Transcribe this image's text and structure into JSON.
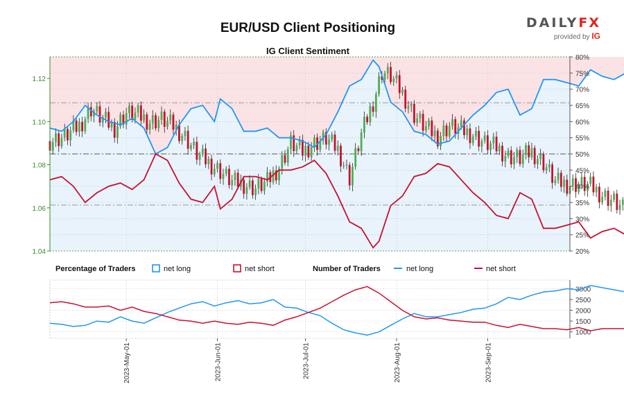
{
  "title": "EUR/USD Client Positioning",
  "subtitle": "IG Client Sentiment",
  "brand": {
    "name_main": "DAILY",
    "name_accent": "FX",
    "provided_by": "provided by",
    "provider": "IG"
  },
  "legend": {
    "percentage_label": "Percentage of Traders",
    "number_label": "Number of Traders",
    "net_long": "net long",
    "net_short": "net short"
  },
  "colors": {
    "long": "#2196f3",
    "short": "#c8102e",
    "candle_up": "#4caf50",
    "candle_down": "#c8102e",
    "bg_long": "#e8f3fb",
    "bg_short": "#fbe3e5",
    "left_axis": "#3a8a2a"
  },
  "chart_data": [
    {
      "type": "candlestick",
      "title": "EUR/USD Client Positioning",
      "subtitle": "IG Client Sentiment",
      "x_range": [
        "2023-04-05",
        "2023-09-29"
      ],
      "y_left_range": [
        1.04,
        1.13
      ],
      "y_left_ticks": [
        "1.04",
        "1.06",
        "1.08",
        "1.10",
        "1.12"
      ],
      "y_right_range": [
        20,
        80
      ],
      "y_right_ticks": [
        "20%",
        "25%",
        "30%",
        "35%",
        "40%",
        "45%",
        "50%",
        "55%",
        "60%",
        "65%",
        "70%",
        "75%",
        "80%"
      ],
      "price_close": [
        [
          0,
          1.091
        ],
        [
          5,
          1.093
        ],
        [
          10,
          1.098
        ],
        [
          14,
          1.106
        ],
        [
          18,
          1.101
        ],
        [
          22,
          1.097
        ],
        [
          26,
          1.104
        ],
        [
          30,
          1.103
        ],
        [
          34,
          1.1
        ],
        [
          38,
          1.101
        ],
        [
          42,
          1.098
        ],
        [
          46,
          1.093
        ],
        [
          50,
          1.085
        ],
        [
          54,
          1.081
        ],
        [
          58,
          1.077
        ],
        [
          62,
          1.072
        ],
        [
          66,
          1.071
        ],
        [
          70,
          1.069
        ],
        [
          74,
          1.072
        ],
        [
          78,
          1.079
        ],
        [
          82,
          1.09
        ],
        [
          86,
          1.086
        ],
        [
          90,
          1.09
        ],
        [
          94,
          1.092
        ],
        [
          98,
          1.087
        ],
        [
          102,
          1.074
        ],
        [
          106,
          1.094
        ],
        [
          110,
          1.109
        ],
        [
          113,
          1.123
        ],
        [
          116,
          1.121
        ],
        [
          120,
          1.113
        ],
        [
          124,
          1.103
        ],
        [
          128,
          1.097
        ],
        [
          132,
          1.093
        ],
        [
          136,
          1.098
        ],
        [
          140,
          1.096
        ],
        [
          144,
          1.094
        ],
        [
          148,
          1.09
        ],
        [
          152,
          1.088
        ],
        [
          156,
          1.084
        ],
        [
          160,
          1.083
        ],
        [
          164,
          1.086
        ],
        [
          168,
          1.081
        ],
        [
          172,
          1.072
        ],
        [
          176,
          1.071
        ],
        [
          180,
          1.071
        ],
        [
          184,
          1.07
        ],
        [
          188,
          1.066
        ],
        [
          192,
          1.063
        ],
        [
          196,
          1.058
        ],
        [
          200,
          1.055
        ],
        [
          203,
          1.057
        ]
      ],
      "net_long_pct": [
        [
          0,
          58
        ],
        [
          4,
          57
        ],
        [
          8,
          60
        ],
        [
          12,
          65
        ],
        [
          16,
          62
        ],
        [
          20,
          60
        ],
        [
          24,
          59
        ],
        [
          28,
          61
        ],
        [
          32,
          58
        ],
        [
          36,
          50
        ],
        [
          40,
          52
        ],
        [
          44,
          59
        ],
        [
          48,
          64
        ],
        [
          52,
          65
        ],
        [
          56,
          60
        ],
        [
          58,
          67
        ],
        [
          62,
          64
        ],
        [
          66,
          57
        ],
        [
          70,
          57
        ],
        [
          74,
          58
        ],
        [
          78,
          55
        ],
        [
          82,
          55
        ],
        [
          86,
          54
        ],
        [
          90,
          52
        ],
        [
          94,
          56
        ],
        [
          98,
          63
        ],
        [
          102,
          71
        ],
        [
          106,
          73
        ],
        [
          110,
          79
        ],
        [
          112,
          77
        ],
        [
          116,
          66
        ],
        [
          120,
          63
        ],
        [
          124,
          57
        ],
        [
          128,
          56
        ],
        [
          132,
          53
        ],
        [
          136,
          54
        ],
        [
          140,
          58
        ],
        [
          144,
          62
        ],
        [
          148,
          65
        ],
        [
          152,
          69
        ],
        [
          156,
          70
        ],
        [
          160,
          62
        ],
        [
          164,
          64
        ],
        [
          168,
          73
        ],
        [
          172,
          73
        ],
        [
          176,
          72
        ],
        [
          180,
          71
        ],
        [
          184,
          76
        ],
        [
          188,
          74
        ],
        [
          192,
          73
        ],
        [
          196,
          75
        ],
        [
          200,
          71
        ],
        [
          203,
          70
        ]
      ],
      "net_short_pct": [
        [
          0,
          42
        ],
        [
          4,
          43
        ],
        [
          8,
          40
        ],
        [
          12,
          35
        ],
        [
          16,
          38
        ],
        [
          20,
          40
        ],
        [
          24,
          41
        ],
        [
          28,
          39
        ],
        [
          32,
          42
        ],
        [
          36,
          50
        ],
        [
          40,
          48
        ],
        [
          44,
          41
        ],
        [
          48,
          36
        ],
        [
          52,
          35
        ],
        [
          56,
          40
        ],
        [
          58,
          33
        ],
        [
          62,
          36
        ],
        [
          66,
          43
        ],
        [
          70,
          43
        ],
        [
          74,
          42
        ],
        [
          78,
          45
        ],
        [
          82,
          45
        ],
        [
          86,
          46
        ],
        [
          90,
          48
        ],
        [
          94,
          44
        ],
        [
          98,
          37
        ],
        [
          102,
          29
        ],
        [
          106,
          27
        ],
        [
          110,
          21
        ],
        [
          112,
          23
        ],
        [
          116,
          34
        ],
        [
          120,
          37
        ],
        [
          124,
          43
        ],
        [
          128,
          44
        ],
        [
          132,
          47
        ],
        [
          136,
          46
        ],
        [
          140,
          42
        ],
        [
          144,
          38
        ],
        [
          148,
          35
        ],
        [
          152,
          31
        ],
        [
          156,
          30
        ],
        [
          160,
          38
        ],
        [
          164,
          36
        ],
        [
          168,
          27
        ],
        [
          172,
          27
        ],
        [
          176,
          28
        ],
        [
          180,
          29
        ],
        [
          184,
          24
        ],
        [
          188,
          26
        ],
        [
          192,
          27
        ],
        [
          196,
          25
        ],
        [
          200,
          29
        ],
        [
          203,
          30
        ]
      ]
    },
    {
      "type": "line",
      "title": "Number of Traders",
      "y_range": [
        700,
        3400
      ],
      "y_ticks": [
        "1000",
        "1500",
        "2000",
        "2500",
        "3000"
      ],
      "x_tick_labels": [
        "2023-May-01",
        "2023-Jun-01",
        "2023-Jul-01",
        "2023-Aug-01",
        "2023-Sep-01"
      ],
      "x_tick_days": [
        26,
        57,
        87,
        118,
        149
      ],
      "series": [
        {
          "name": "net long",
          "points": [
            [
              0,
              1400
            ],
            [
              4,
              1350
            ],
            [
              8,
              1250
            ],
            [
              12,
              1300
            ],
            [
              16,
              1500
            ],
            [
              20,
              1450
            ],
            [
              24,
              1700
            ],
            [
              28,
              1500
            ],
            [
              32,
              1400
            ],
            [
              36,
              1650
            ],
            [
              40,
              1900
            ],
            [
              44,
              2100
            ],
            [
              48,
              2300
            ],
            [
              52,
              2400
            ],
            [
              56,
              2200
            ],
            [
              60,
              2350
            ],
            [
              64,
              2450
            ],
            [
              68,
              2300
            ],
            [
              72,
              2350
            ],
            [
              76,
              2500
            ],
            [
              80,
              2150
            ],
            [
              84,
              2100
            ],
            [
              88,
              1900
            ],
            [
              92,
              1750
            ],
            [
              96,
              1400
            ],
            [
              100,
              1100
            ],
            [
              104,
              950
            ],
            [
              108,
              850
            ],
            [
              112,
              1000
            ],
            [
              116,
              1300
            ],
            [
              120,
              1600
            ],
            [
              124,
              1850
            ],
            [
              128,
              1700
            ],
            [
              132,
              1700
            ],
            [
              136,
              1800
            ],
            [
              140,
              1900
            ],
            [
              144,
              2050
            ],
            [
              148,
              2100
            ],
            [
              152,
              2300
            ],
            [
              156,
              2600
            ],
            [
              160,
              2500
            ],
            [
              164,
              2700
            ],
            [
              168,
              2850
            ],
            [
              172,
              2900
            ],
            [
              176,
              3000
            ],
            [
              180,
              2950
            ],
            [
              184,
              3150
            ],
            [
              188,
              3050
            ],
            [
              192,
              2950
            ],
            [
              196,
              2850
            ],
            [
              200,
              3100
            ],
            [
              203,
              2700
            ]
          ]
        },
        {
          "name": "net short",
          "points": [
            [
              0,
              2350
            ],
            [
              4,
              2400
            ],
            [
              8,
              2300
            ],
            [
              12,
              2150
            ],
            [
              16,
              2150
            ],
            [
              20,
              2200
            ],
            [
              24,
              2000
            ],
            [
              28,
              2150
            ],
            [
              32,
              1950
            ],
            [
              36,
              1850
            ],
            [
              40,
              1700
            ],
            [
              44,
              1550
            ],
            [
              48,
              1500
            ],
            [
              52,
              1400
            ],
            [
              56,
              1500
            ],
            [
              60,
              1400
            ],
            [
              64,
              1350
            ],
            [
              68,
              1450
            ],
            [
              72,
              1400
            ],
            [
              76,
              1300
            ],
            [
              80,
              1550
            ],
            [
              84,
              1700
            ],
            [
              88,
              1900
            ],
            [
              92,
              2100
            ],
            [
              96,
              2400
            ],
            [
              100,
              2700
            ],
            [
              104,
              2950
            ],
            [
              108,
              3100
            ],
            [
              112,
              2800
            ],
            [
              116,
              2400
            ],
            [
              120,
              2000
            ],
            [
              124,
              1700
            ],
            [
              128,
              1600
            ],
            [
              132,
              1650
            ],
            [
              136,
              1550
            ],
            [
              140,
              1500
            ],
            [
              144,
              1450
            ],
            [
              148,
              1450
            ],
            [
              152,
              1300
            ],
            [
              156,
              1200
            ],
            [
              160,
              1350
            ],
            [
              164,
              1250
            ],
            [
              168,
              1150
            ],
            [
              172,
              1150
            ],
            [
              176,
              1100
            ],
            [
              180,
              1200
            ],
            [
              184,
              1050
            ],
            [
              188,
              1150
            ],
            [
              192,
              1150
            ],
            [
              196,
              1150
            ],
            [
              200,
              1100
            ],
            [
              203,
              1250
            ]
          ]
        }
      ]
    }
  ]
}
